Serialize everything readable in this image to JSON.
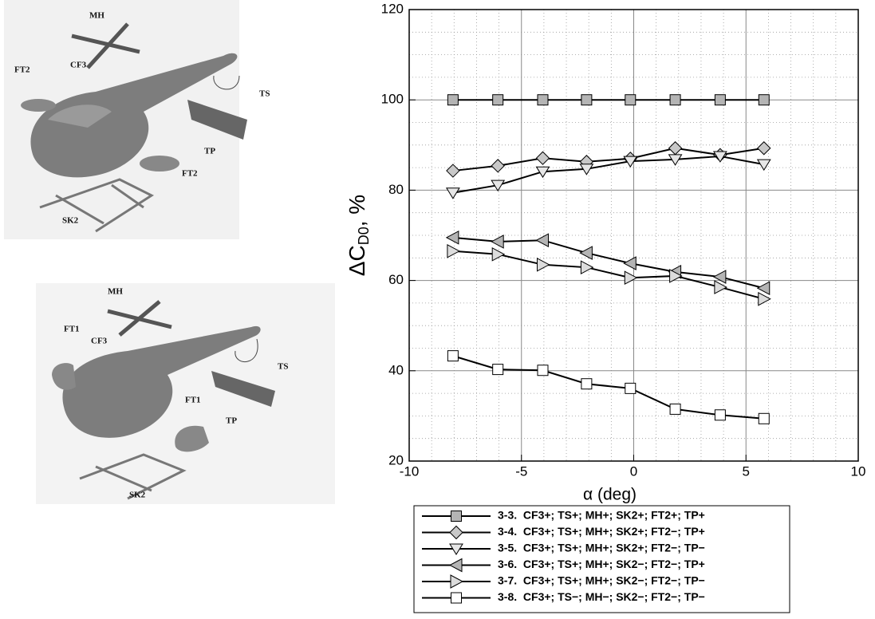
{
  "figures": [
    {
      "labels": [
        "MH",
        "CF3",
        "FT2",
        "TS",
        "TP",
        "FT2",
        "SK2"
      ]
    },
    {
      "labels": [
        "MH",
        "FT1",
        "CF3",
        "TS",
        "FT1",
        "TP",
        "SK2"
      ]
    }
  ],
  "chart_data": {
    "type": "line",
    "xlabel": "α (deg)",
    "ylabel": [
      "ΔC",
      "D0",
      ", %"
    ],
    "x": [
      -8.05,
      -6.05,
      -4.05,
      -2.1,
      -0.15,
      1.85,
      3.85,
      5.8
    ],
    "series": [
      {
        "name": "3-3.  CF3+; TS+; MH+; SK2+; FT2+; TP+",
        "marker": "square",
        "color": "#b4b4b4",
        "values": [
          100,
          100,
          100,
          100,
          100,
          100,
          100,
          100
        ]
      },
      {
        "name": "3-4.  CF3+; TS+; MH+; SK2+; FT2−; TP+",
        "marker": "diamond",
        "color": "#c8c8c8",
        "values": [
          84.3,
          85.4,
          87.1,
          86.3,
          87.0,
          89.3,
          87.8,
          89.3
        ]
      },
      {
        "name": "3-5.  CF3+; TS+; MH+; SK2+; FT2−; TP−",
        "marker": "triangle-down",
        "color": "#e6e6e6",
        "values": [
          79.4,
          81.1,
          84.1,
          84.7,
          86.4,
          86.8,
          87.5,
          85.7
        ]
      },
      {
        "name": "3-6.  CF3+; TS+; MH+; SK2−; FT2−; TP+",
        "marker": "triangle-left",
        "color": "#b4b4b4",
        "values": [
          69.5,
          68.6,
          68.9,
          66.1,
          63.8,
          61.9,
          60.8,
          58.3
        ]
      },
      {
        "name": "3-7.  CF3+; TS+; MH+; SK2−; FT2−; TP−",
        "marker": "triangle-right",
        "color": "#dcdcdc",
        "values": [
          66.5,
          65.8,
          63.5,
          62.9,
          60.6,
          61.0,
          58.5,
          55.9
        ]
      },
      {
        "name": "3-8.  CF3+; TS−; MH−; SK2−; FT2−; TP−",
        "marker": "square",
        "color": "#ffffff",
        "values": [
          43.3,
          40.3,
          40.1,
          37.1,
          36.1,
          31.5,
          30.2,
          29.4
        ]
      }
    ],
    "xlim": [
      -10,
      10
    ],
    "xticks": [
      -10,
      -5,
      0,
      5,
      10
    ],
    "ylim": [
      20,
      120
    ],
    "yticks": [
      20,
      40,
      60,
      80,
      100,
      120
    ],
    "grid": true,
    "legend": "below"
  }
}
